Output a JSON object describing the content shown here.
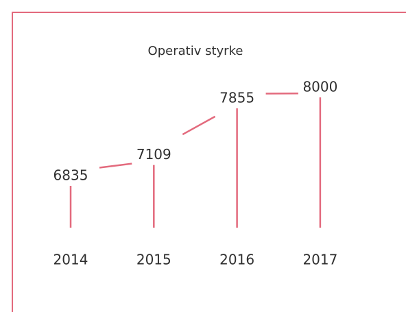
{
  "chart_data": {
    "type": "line",
    "title": "Operativ styrke",
    "categories": [
      "2014",
      "2015",
      "2016",
      "2017"
    ],
    "values": [
      6835,
      7109,
      7855,
      8000
    ],
    "color": "#e36a7d"
  }
}
